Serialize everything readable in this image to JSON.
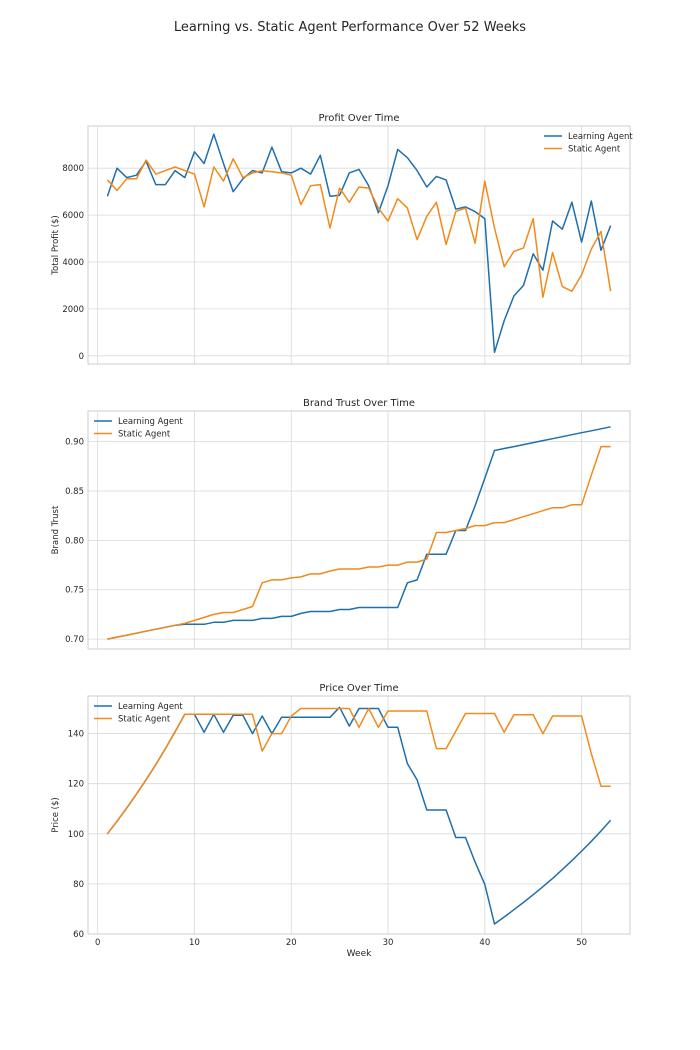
{
  "figure": {
    "suptitle": "Learning vs. Static Agent Performance Over 52 Weeks",
    "shared_xlabel": "Week",
    "x_ticks": [
      0,
      10,
      20,
      30,
      40,
      50
    ]
  },
  "colors": {
    "learning": "#1f6fad",
    "static": "#f28a1b",
    "grid": "#d9d9d9",
    "frame": "#cccccc",
    "text": "#262626"
  },
  "chart_data": [
    {
      "type": "line",
      "title": "Profit Over Time",
      "xlabel": "",
      "ylabel": "Total Profit ($)",
      "xlim": [
        -1,
        55
      ],
      "ylim": [
        -350,
        9800
      ],
      "yticks": [
        0,
        2000,
        4000,
        6000,
        8000
      ],
      "ytick_labels": [
        "0",
        "2000",
        "4000",
        "6000",
        "8000"
      ],
      "legend": "top-right",
      "grid": true,
      "x": [
        1,
        2,
        3,
        4,
        5,
        6,
        7,
        8,
        9,
        10,
        11,
        12,
        13,
        14,
        15,
        16,
        17,
        18,
        19,
        20,
        21,
        22,
        23,
        24,
        25,
        26,
        27,
        28,
        29,
        30,
        31,
        32,
        33,
        34,
        35,
        36,
        37,
        38,
        39,
        40,
        41,
        42,
        43,
        44,
        45,
        46,
        47,
        48,
        49,
        50,
        51,
        52,
        53
      ],
      "series": [
        {
          "name": "Learning Agent",
          "color_key": "learning",
          "values": [
            6800,
            8000,
            7600,
            7700,
            8300,
            7300,
            7300,
            7900,
            7600,
            8700,
            8200,
            9450,
            8200,
            7000,
            7550,
            7900,
            7800,
            8900,
            7850,
            7800,
            8000,
            7750,
            8550,
            6800,
            6850,
            7800,
            7950,
            7250,
            6100,
            7250,
            8800,
            8450,
            7900,
            7200,
            7650,
            7500,
            6250,
            6350,
            6150,
            5850,
            150,
            1500,
            2550,
            3000,
            4350,
            3650,
            5750,
            5400,
            6550,
            4850,
            6600,
            4500,
            5550
          ]
        },
        {
          "name": "Static Agent",
          "color_key": "static",
          "values": [
            7500,
            7050,
            7550,
            7550,
            8350,
            7750,
            7900,
            8050,
            7900,
            7750,
            6350,
            8050,
            7450,
            8400,
            7600,
            7800,
            7900,
            7850,
            7800,
            7700,
            6450,
            7250,
            7300,
            5450,
            7150,
            6550,
            7200,
            7150,
            6300,
            5750,
            6700,
            6300,
            4950,
            5950,
            6550,
            4750,
            6150,
            6300,
            4800,
            7450,
            5450,
            3800,
            4450,
            4600,
            5850,
            2500,
            4400,
            2950,
            2750,
            3450,
            4550,
            5300,
            2750
          ]
        }
      ]
    },
    {
      "type": "line",
      "title": "Brand Trust Over Time",
      "xlabel": "",
      "ylabel": "Brand Trust",
      "xlim": [
        -1,
        55
      ],
      "ylim": [
        0.69,
        0.931
      ],
      "yticks": [
        0.7,
        0.75,
        0.8,
        0.85,
        0.9
      ],
      "ytick_labels": [
        "0.70",
        "0.75",
        "0.80",
        "0.85",
        "0.90"
      ],
      "legend": "top-left",
      "grid": true,
      "x": [
        1,
        2,
        3,
        4,
        5,
        6,
        7,
        8,
        9,
        10,
        11,
        12,
        13,
        14,
        15,
        16,
        17,
        18,
        19,
        20,
        21,
        22,
        23,
        24,
        25,
        26,
        27,
        28,
        29,
        30,
        31,
        32,
        33,
        34,
        35,
        36,
        37,
        38,
        39,
        40,
        41,
        42,
        43,
        44,
        45,
        46,
        47,
        48,
        49,
        50,
        51,
        52,
        53
      ],
      "series": [
        {
          "name": "Learning Agent",
          "color_key": "learning",
          "values": [
            0.7,
            0.702,
            0.704,
            0.706,
            0.708,
            0.71,
            0.712,
            0.714,
            0.715,
            0.715,
            0.715,
            0.717,
            0.717,
            0.719,
            0.719,
            0.719,
            0.721,
            0.721,
            0.723,
            0.723,
            0.726,
            0.728,
            0.728,
            0.728,
            0.73,
            0.73,
            0.732,
            0.732,
            0.732,
            0.732,
            0.732,
            0.757,
            0.76,
            0.786,
            0.786,
            0.786,
            0.81,
            0.81,
            0.835,
            0.863,
            0.891,
            0.893,
            0.895,
            0.897,
            0.899,
            0.901,
            0.903,
            0.905,
            0.907,
            0.909,
            0.911,
            0.913,
            0.915
          ]
        },
        {
          "name": "Static Agent",
          "color_key": "static",
          "values": [
            0.7,
            0.702,
            0.704,
            0.706,
            0.708,
            0.71,
            0.712,
            0.714,
            0.716,
            0.719,
            0.722,
            0.725,
            0.727,
            0.727,
            0.73,
            0.733,
            0.757,
            0.76,
            0.76,
            0.762,
            0.763,
            0.766,
            0.766,
            0.769,
            0.771,
            0.771,
            0.771,
            0.773,
            0.773,
            0.775,
            0.775,
            0.778,
            0.778,
            0.781,
            0.808,
            0.808,
            0.81,
            0.812,
            0.815,
            0.815,
            0.818,
            0.818,
            0.821,
            0.824,
            0.827,
            0.83,
            0.833,
            0.833,
            0.836,
            0.836,
            0.866,
            0.895,
            0.895
          ]
        }
      ]
    },
    {
      "type": "line",
      "title": "Price Over Time",
      "xlabel": "Week",
      "ylabel": "Price ($)",
      "xlim": [
        -1,
        55
      ],
      "ylim": [
        60,
        155
      ],
      "yticks": [
        60,
        80,
        100,
        120,
        140
      ],
      "ytick_labels": [
        "60",
        "80",
        "100",
        "120",
        "140"
      ],
      "legend": "top-left",
      "grid": true,
      "x": [
        1,
        2,
        3,
        4,
        5,
        6,
        7,
        8,
        9,
        10,
        11,
        12,
        13,
        14,
        15,
        16,
        17,
        18,
        19,
        20,
        21,
        22,
        23,
        24,
        25,
        26,
        27,
        28,
        29,
        30,
        31,
        32,
        33,
        34,
        35,
        36,
        37,
        38,
        39,
        40,
        41,
        42,
        43,
        44,
        45,
        46,
        47,
        48,
        49,
        50,
        51,
        52,
        53
      ],
      "series": [
        {
          "name": "Learning Agent",
          "color_key": "learning",
          "values": [
            100,
            105,
            110.3,
            115.8,
            121.6,
            127.6,
            134,
            140.7,
            147.7,
            147.7,
            140.5,
            147.7,
            140.5,
            147.3,
            147.3,
            140,
            147,
            140,
            146.5,
            146.5,
            146.5,
            146.5,
            146.5,
            146.5,
            150.5,
            143,
            150,
            150,
            150,
            142.5,
            142.5,
            128,
            121.5,
            109.5,
            109.5,
            109.5,
            98.5,
            98.5,
            88.7,
            79.8,
            64,
            66.8,
            69.7,
            72.6,
            75.7,
            78.9,
            82.2,
            85.7,
            89.3,
            93.1,
            97,
            101.1,
            105.4
          ]
        },
        {
          "name": "Static Agent",
          "color_key": "static",
          "values": [
            100,
            105,
            110.3,
            115.8,
            121.6,
            127.6,
            134,
            140.7,
            147.7,
            147.7,
            147.7,
            147.7,
            147.7,
            147.7,
            147.7,
            147.7,
            133,
            140,
            140,
            147,
            150,
            150,
            150,
            150,
            150,
            150,
            142.5,
            150,
            142.5,
            149,
            149,
            149,
            149,
            149,
            134,
            134,
            141,
            148,
            148,
            148,
            148,
            140.5,
            147.5,
            147.5,
            147.5,
            140,
            147,
            147,
            147,
            147,
            132,
            119,
            119
          ]
        }
      ]
    }
  ]
}
